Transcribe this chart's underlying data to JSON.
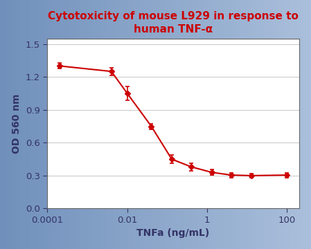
{
  "title_line1": "Cytotoxicity of mouse L929 in response to",
  "title_line2": "human TNF-α",
  "xlabel": "TNFa (ng/mL)",
  "ylabel": "OD 560 nm",
  "title_color": "#cc0000",
  "line_color": "#cc0000",
  "marker_color": "#cc0000",
  "tick_label_color": "#333366",
  "axis_label_color": "#333366",
  "plot_bg_color": "#ffffff",
  "x": [
    0.0002,
    0.004,
    0.01,
    0.04,
    0.13,
    0.4,
    1.3,
    4.0,
    13.0,
    100.0
  ],
  "y": [
    1.3,
    1.25,
    1.05,
    0.75,
    0.45,
    0.38,
    0.33,
    0.305,
    0.3,
    0.305
  ],
  "yerr": [
    0.025,
    0.035,
    0.065,
    0.025,
    0.04,
    0.035,
    0.025,
    0.022,
    0.018,
    0.022
  ],
  "ylim": [
    0,
    1.55
  ],
  "yticks": [
    0,
    0.3,
    0.6,
    0.9,
    1.2,
    1.5
  ],
  "xtick_values": [
    0.0001,
    0.01,
    1,
    100
  ],
  "xtick_labels": [
    "0.0001",
    "0.01",
    "1",
    "100"
  ],
  "title_fontsize": 11,
  "label_fontsize": 10,
  "tick_fontsize": 9.5
}
